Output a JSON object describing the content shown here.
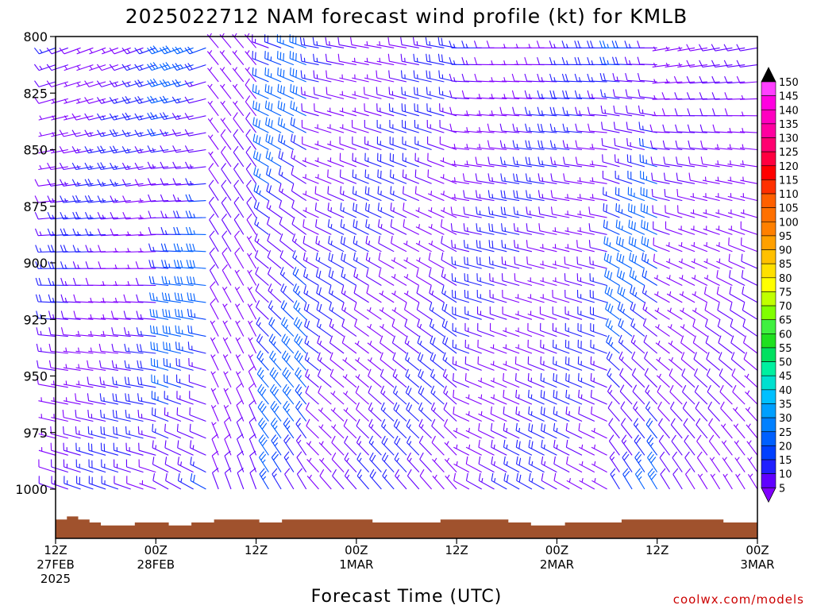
{
  "chart_data": {
    "type": "wind-barb time-height",
    "title": "2025022712 NAM forecast wind profile (kt) for KMLB",
    "xlabel": "Forecast Time (UTC)",
    "credit": "coolwx.com/models",
    "y_axis": {
      "scale": "pressure (hPa)",
      "range": [
        800,
        1020
      ],
      "ticks": [
        "800",
        "825",
        "850",
        "875",
        "900",
        "925",
        "950",
        "975",
        "1000"
      ]
    },
    "x_axis": {
      "range_hours": [
        0,
        84
      ],
      "ticks": [
        {
          "hour": 0,
          "lines": [
            "12Z",
            "27FEB",
            "2025"
          ]
        },
        {
          "hour": 12,
          "lines": [
            "00Z",
            "28FEB"
          ]
        },
        {
          "hour": 24,
          "lines": [
            "12Z"
          ]
        },
        {
          "hour": 36,
          "lines": [
            "00Z",
            "1MAR"
          ]
        },
        {
          "hour": 48,
          "lines": [
            "12Z"
          ]
        },
        {
          "hour": 60,
          "lines": [
            "00Z",
            "2MAR"
          ]
        },
        {
          "hour": 72,
          "lines": [
            "12Z"
          ]
        },
        {
          "hour": 84,
          "lines": [
            "00Z",
            "3MAR"
          ]
        }
      ]
    },
    "colorbar": {
      "levels": [
        5,
        10,
        15,
        20,
        25,
        30,
        35,
        40,
        45,
        50,
        55,
        60,
        65,
        70,
        75,
        80,
        85,
        90,
        95,
        100,
        105,
        110,
        115,
        120,
        125,
        130,
        135,
        140,
        145,
        150
      ],
      "colors": [
        "#8000ff",
        "#6000ff",
        "#2020ff",
        "#0040ff",
        "#0060ff",
        "#0080ff",
        "#00a0ff",
        "#00c0ff",
        "#00e0d0",
        "#00f0a0",
        "#00e060",
        "#20e020",
        "#40f040",
        "#80ff00",
        "#c0ff00",
        "#ffff00",
        "#ffe000",
        "#ffc000",
        "#ffa000",
        "#ff8000",
        "#ff7000",
        "#ff6000",
        "#ff3000",
        "#ff0000",
        "#ff0040",
        "#ff0070",
        "#ff00a0",
        "#ff00c0",
        "#ff00e0",
        "#ff40ff"
      ],
      "over_color": "#000000",
      "under_color": "#8000ff"
    },
    "wind_regimes": [
      {
        "hours": [
          0,
          12
        ],
        "upper_dir_deg": 250,
        "lower_dir_deg": 290,
        "speed_kt": 15
      },
      {
        "hours": [
          12,
          18
        ],
        "upper_dir_deg": 250,
        "lower_dir_deg": 300,
        "speed_kt": 25
      },
      {
        "hours": [
          18,
          24
        ],
        "upper_dir_deg": 320,
        "lower_dir_deg": 340,
        "speed_kt": 10
      },
      {
        "hours": [
          24,
          30
        ],
        "upper_dir_deg": 290,
        "lower_dir_deg": 330,
        "speed_kt": 25
      },
      {
        "hours": [
          30,
          48
        ],
        "upper_dir_deg": 280,
        "lower_dir_deg": 320,
        "speed_kt": 15
      },
      {
        "hours": [
          48,
          66
        ],
        "upper_dir_deg": 270,
        "lower_dir_deg": 300,
        "speed_kt": 15
      },
      {
        "hours": [
          66,
          72
        ],
        "upper_dir_deg": 270,
        "lower_dir_deg": 330,
        "speed_kt": 25
      },
      {
        "hours": [
          72,
          84
        ],
        "upper_dir_deg": 260,
        "lower_dir_deg": 330,
        "speed_kt": 10
      }
    ],
    "surface_pressure_hpa": [
      1014,
      1015,
      1014,
      1013,
      1012,
      1012,
      1012,
      1013,
      1013,
      1013,
      1012,
      1012,
      1013,
      1013,
      1014,
      1014,
      1014,
      1014,
      1013,
      1013,
      1014,
      1014,
      1014,
      1014,
      1014,
      1014,
      1014,
      1014,
      1013,
      1013,
      1013,
      1013,
      1013,
      1013,
      1014,
      1014,
      1014,
      1014,
      1014,
      1014,
      1013,
      1013,
      1012,
      1012,
      1012,
      1013,
      1013,
      1013,
      1013,
      1013,
      1014,
      1014,
      1014,
      1014,
      1014,
      1014,
      1014,
      1014,
      1014,
      1013,
      1013,
      1013
    ]
  }
}
